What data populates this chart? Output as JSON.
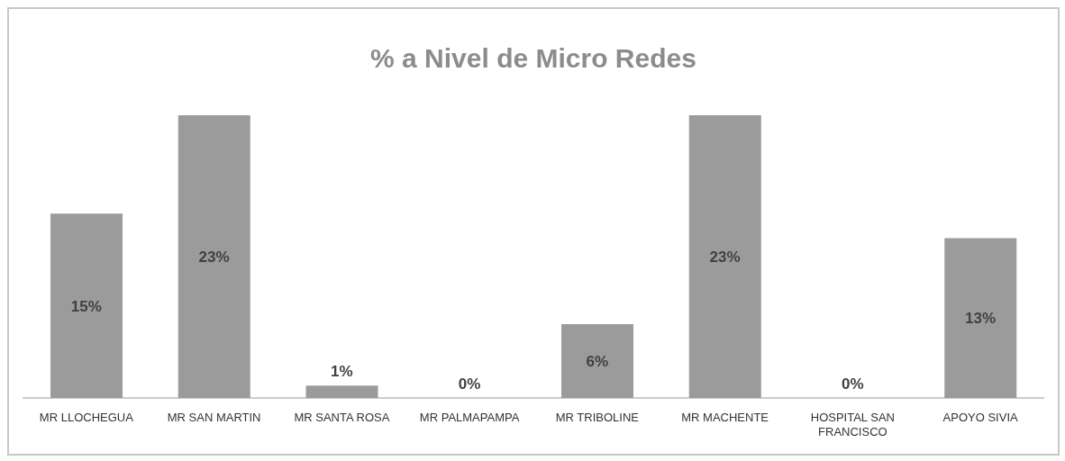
{
  "chart_data": {
    "type": "bar",
    "title": "% a Nivel de Micro Redes",
    "categories": [
      "MR LLOCHEGUA",
      "MR SAN MARTIN",
      "MR SANTA ROSA",
      "MR PALMAPAMPA",
      "MR TRIBOLINE",
      "MR MACHENTE",
      "HOSPITAL SAN FRANCISCO",
      "APOYO SIVIA"
    ],
    "values": [
      15,
      23,
      1,
      0,
      6,
      23,
      0,
      13
    ],
    "value_labels": [
      "15%",
      "23%",
      "1%",
      "0%",
      "6%",
      "23%",
      "0%",
      "13%"
    ],
    "color": "#9b9b9b",
    "grid": false,
    "legend": false
  }
}
